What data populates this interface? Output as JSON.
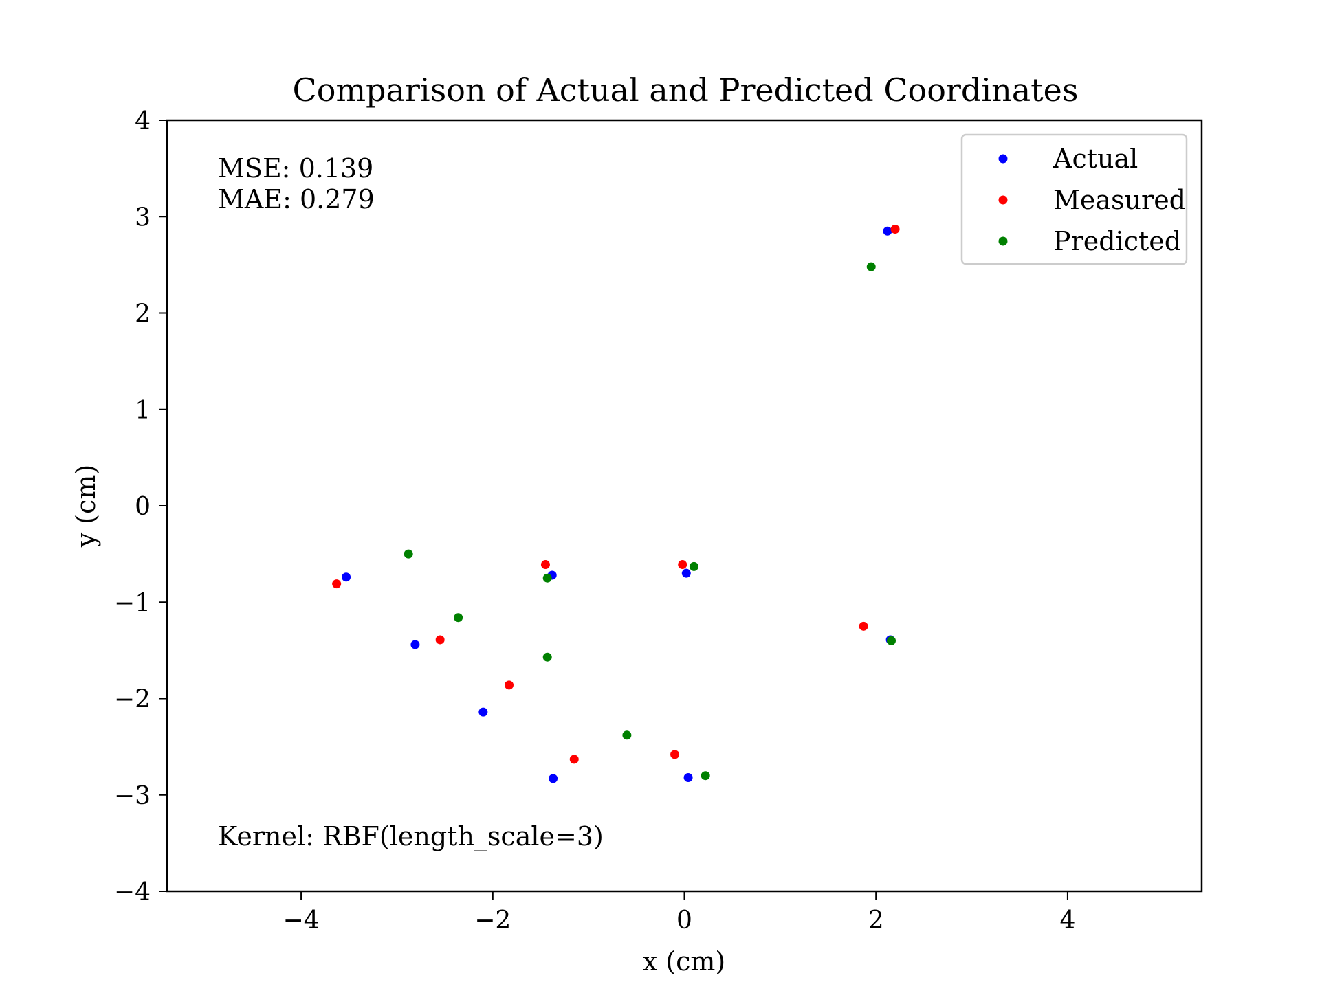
{
  "chart_data": {
    "type": "scatter",
    "title": "Comparison of Actual and Predicted Coordinates",
    "xlabel": "x (cm)",
    "ylabel": "y (cm)",
    "xlim": [
      -5.4,
      5.4
    ],
    "ylim": [
      -4,
      4
    ],
    "xticks": [
      -4,
      -2,
      0,
      2,
      4
    ],
    "yticks": [
      -4,
      -3,
      -2,
      -1,
      0,
      1,
      2,
      3,
      4
    ],
    "xtick_labels": [
      "−4",
      "−2",
      "0",
      "2",
      "4"
    ],
    "ytick_labels": [
      "−4",
      "−3",
      "−2",
      "−1",
      "0",
      "1",
      "2",
      "3",
      "4"
    ],
    "grid": false,
    "legend_position": "top-right",
    "annotations": {
      "mse": "MSE: 0.139",
      "mae": "MAE: 0.279",
      "kernel": "Kernel:  RBF(length_scale=3)"
    },
    "series": [
      {
        "name": "Actual",
        "color": "#0000ff",
        "points": [
          {
            "x": 2.12,
            "y": 2.85
          },
          {
            "x": -3.53,
            "y": -0.74
          },
          {
            "x": -1.38,
            "y": -0.72
          },
          {
            "x": 0.02,
            "y": -0.7
          },
          {
            "x": -2.81,
            "y": -1.44
          },
          {
            "x": 2.15,
            "y": -1.39
          },
          {
            "x": -2.1,
            "y": -2.14
          },
          {
            "x": -1.37,
            "y": -2.83
          },
          {
            "x": 0.04,
            "y": -2.82
          }
        ]
      },
      {
        "name": "Measured",
        "color": "#ff0000",
        "points": [
          {
            "x": 2.2,
            "y": 2.87
          },
          {
            "x": -3.63,
            "y": -0.81
          },
          {
            "x": -1.45,
            "y": -0.61
          },
          {
            "x": -0.02,
            "y": -0.61
          },
          {
            "x": -2.55,
            "y": -1.39
          },
          {
            "x": 1.87,
            "y": -1.25
          },
          {
            "x": -1.83,
            "y": -1.86
          },
          {
            "x": -1.15,
            "y": -2.63
          },
          {
            "x": -0.1,
            "y": -2.58
          }
        ]
      },
      {
        "name": "Predicted",
        "color": "#008000",
        "points": [
          {
            "x": 1.95,
            "y": 2.48
          },
          {
            "x": -2.88,
            "y": -0.5
          },
          {
            "x": -1.43,
            "y": -0.75
          },
          {
            "x": 0.1,
            "y": -0.63
          },
          {
            "x": -2.36,
            "y": -1.16
          },
          {
            "x": 2.16,
            "y": -1.4
          },
          {
            "x": -1.43,
            "y": -1.57
          },
          {
            "x": -0.6,
            "y": -2.38
          },
          {
            "x": 0.22,
            "y": -2.8
          }
        ]
      }
    ]
  }
}
